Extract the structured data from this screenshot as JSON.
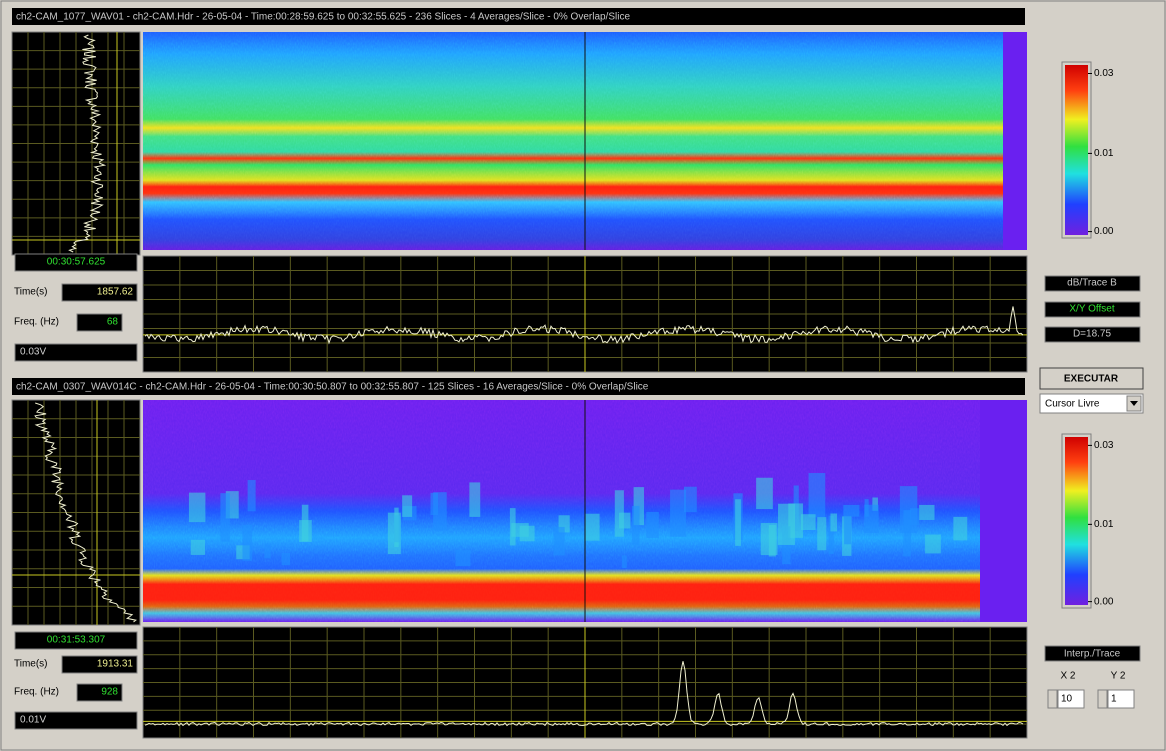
{
  "panels": [
    {
      "header": "ch2-CAM_1077_WAV01 - ch2-CAM.Hdr - 26-05-04 - Time:00:28:59.625 to 00:32:55.625 - 236 Slices - 4 Averages/Slice - 0% Overlap/Slice",
      "cursor_time": "00:30:57.625",
      "time_label": "Time(s)",
      "time_value": "1857.62",
      "freq_label": "Freq. (Hz)",
      "freq_value": "68",
      "amplitude": "0.03V",
      "colorbar_ticks": [
        "0.03",
        "0.01",
        "0.00"
      ]
    },
    {
      "header": "ch2-CAM_0307_WAV014C - ch2-CAM.Hdr - 26-05-04 - Time:00:30:50.807 to 00:32:55.807 - 125 Slices - 16 Averages/Slice - 0% Overlap/Slice",
      "cursor_time": "00:31:53.307",
      "time_label": "Time(s)",
      "time_value": "1913.31",
      "freq_label": "Freq. (Hz)",
      "freq_value": "928",
      "amplitude": "0.01V",
      "colorbar_ticks": [
        "0.03",
        "0.01",
        "0.00"
      ]
    }
  ],
  "side": {
    "readouts": [
      "dB/Trace B",
      "X/Y Offset",
      "D=18.75"
    ],
    "button": "EXECUTAR",
    "dropdown": "Cursor Livre",
    "mode": "Interp./Trace",
    "x_label": "X 2",
    "y_label": "Y 2",
    "x_value": "10",
    "y_value": "1"
  }
}
